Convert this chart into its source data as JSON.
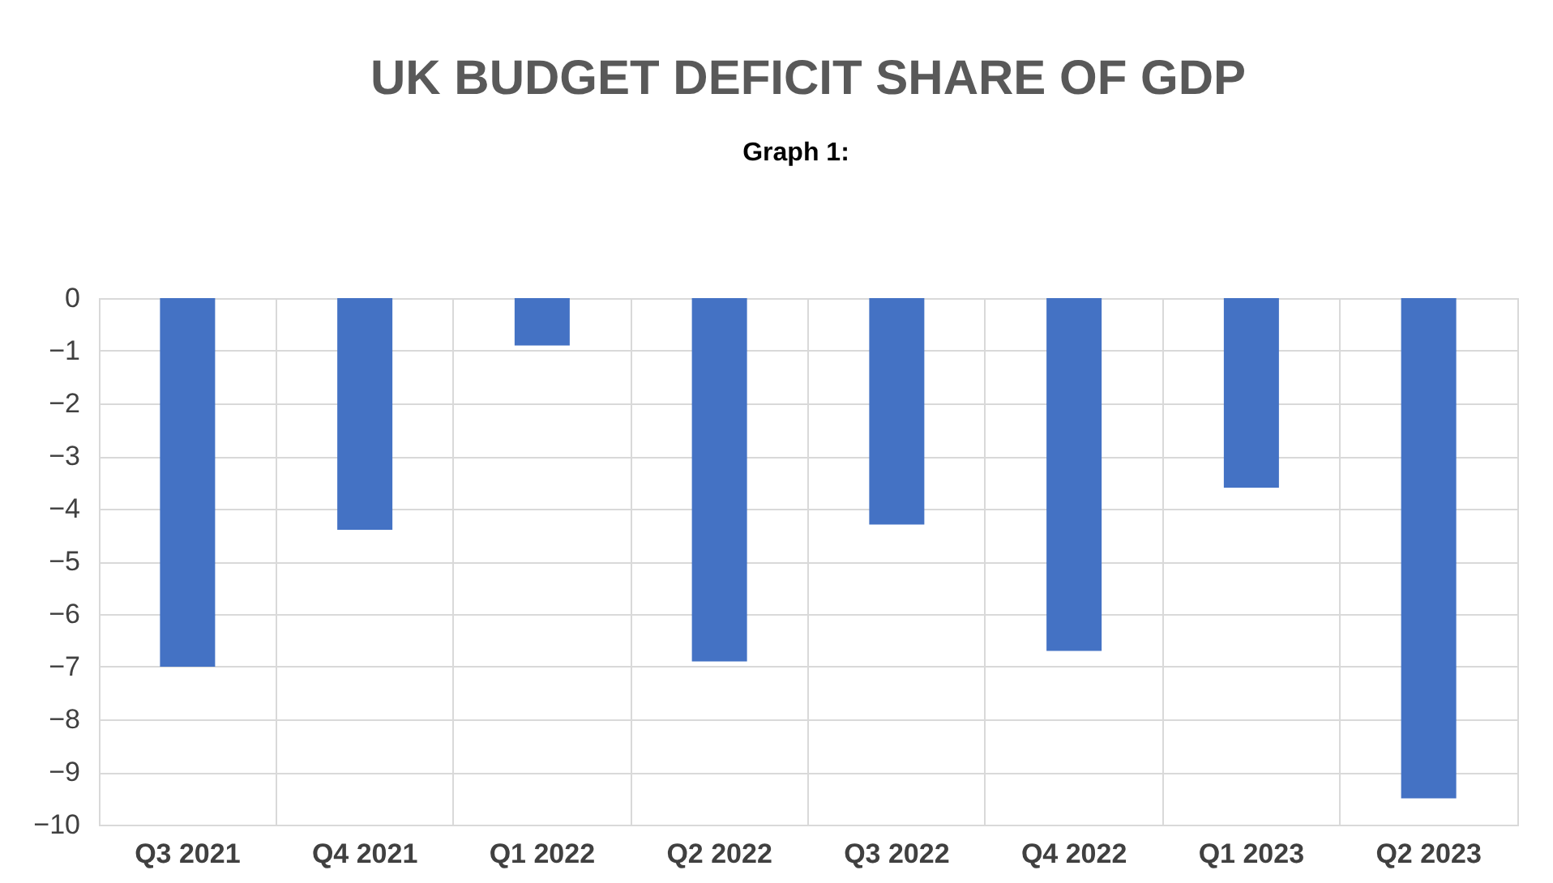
{
  "chart_data": {
    "type": "bar",
    "title": "UK BUDGET DEFICIT SHARE OF GDP",
    "annotations": [
      "Graph 1:"
    ],
    "categories": [
      "Q3 2021",
      "Q4 2021",
      "Q1 2022",
      "Q2 2022",
      "Q3 2022",
      "Q4 2022",
      "Q1 2023",
      "Q2 2023"
    ],
    "values": [
      -7.0,
      -4.4,
      -0.9,
      -6.9,
      -4.3,
      -6.7,
      -3.6,
      -9.5
    ],
    "color": "#4472c4",
    "ylim": [
      -10,
      0
    ],
    "yticks": [
      -10,
      -9,
      -8,
      -7,
      -6,
      -5,
      -4,
      -3,
      -2,
      -1,
      0
    ],
    "grid": true
  }
}
